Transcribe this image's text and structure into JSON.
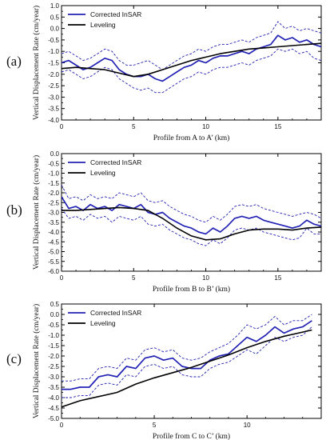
{
  "chart_data": [
    {
      "type": "line",
      "panel_label": "(a)",
      "xlabel": "Profile from A to A’ (km)",
      "ylabel": "Vertical Displacement Rate (cm/year)",
      "xlim": [
        0,
        18
      ],
      "ylim": [
        -4.0,
        1.0
      ],
      "xticks": [
        0,
        5,
        10,
        15
      ],
      "yticks": [
        1.0,
        0.5,
        0.0,
        -0.5,
        -1.0,
        -1.5,
        -2.0,
        -2.5,
        -3.0,
        -3.5,
        -4.0
      ],
      "ytick_labels": [
        "1.0",
        "0.5",
        "0.0",
        "-0.5",
        "-1.0",
        "-1.5",
        "-2.0",
        "-2.5",
        "-3.0",
        "-3.5",
        "-4.0"
      ],
      "legend_position": "top-left",
      "colors": {
        "insar": "#2222b4",
        "leveling": "#000000"
      },
      "series": [
        {
          "name": "Corrected InSAR",
          "style": "solid",
          "x": [
            0,
            0.5,
            1,
            1.5,
            2,
            2.5,
            3,
            3.5,
            4,
            4.5,
            5,
            5.5,
            6,
            6.5,
            7,
            7.5,
            8,
            8.5,
            9,
            9.5,
            10,
            10.5,
            11,
            11.5,
            12,
            12.5,
            13,
            13.5,
            14,
            14.5,
            15,
            15.5,
            16,
            16.5,
            17,
            17.5,
            18
          ],
          "y": [
            -1.5,
            -1.4,
            -1.6,
            -1.8,
            -1.7,
            -1.5,
            -1.3,
            -1.4,
            -1.8,
            -2.0,
            -2.1,
            -2.1,
            -2.0,
            -2.2,
            -2.3,
            -2.1,
            -1.9,
            -1.7,
            -1.6,
            -1.4,
            -1.5,
            -1.3,
            -1.2,
            -1.2,
            -1.1,
            -1.0,
            -1.1,
            -0.9,
            -0.8,
            -0.7,
            -0.3,
            -0.5,
            -0.4,
            -0.6,
            -0.5,
            -0.7,
            -0.8
          ]
        },
        {
          "name": "",
          "style": "dashed",
          "x": [
            0,
            0.5,
            1,
            1.5,
            2,
            2.5,
            3,
            3.5,
            4,
            4.5,
            5,
            5.5,
            6,
            6.5,
            7,
            7.5,
            8,
            8.5,
            9,
            9.5,
            10,
            10.5,
            11,
            11.5,
            12,
            12.5,
            13,
            13.5,
            14,
            14.5,
            15,
            15.5,
            16,
            16.5,
            17,
            17.5,
            18
          ],
          "y": [
            -1.1,
            -1.0,
            -1.2,
            -1.4,
            -1.3,
            -1.1,
            -0.9,
            -1.0,
            -1.4,
            -1.6,
            -1.6,
            -1.5,
            -1.4,
            -1.6,
            -1.8,
            -1.6,
            -1.4,
            -1.2,
            -1.1,
            -0.9,
            -1.0,
            -0.8,
            -0.7,
            -0.7,
            -0.6,
            -0.5,
            -0.6,
            -0.4,
            -0.3,
            -0.2,
            0.3,
            0.0,
            0.1,
            -0.1,
            0.0,
            -0.1,
            -0.2
          ]
        },
        {
          "name": "",
          "style": "dashed",
          "x": [
            0,
            0.5,
            1,
            1.5,
            2,
            2.5,
            3,
            3.5,
            4,
            4.5,
            5,
            5.5,
            6,
            6.5,
            7,
            7.5,
            8,
            8.5,
            9,
            9.5,
            10,
            10.5,
            11,
            11.5,
            12,
            12.5,
            13,
            13.5,
            14,
            14.5,
            15,
            15.5,
            16,
            16.5,
            17,
            17.5,
            18
          ],
          "y": [
            -1.9,
            -1.8,
            -2.0,
            -2.2,
            -2.1,
            -1.9,
            -1.7,
            -1.8,
            -2.2,
            -2.4,
            -2.6,
            -2.7,
            -2.6,
            -2.8,
            -2.8,
            -2.6,
            -2.4,
            -2.2,
            -2.1,
            -1.9,
            -2.0,
            -1.8,
            -1.7,
            -1.7,
            -1.6,
            -1.5,
            -1.6,
            -1.4,
            -1.3,
            -1.2,
            -0.9,
            -1.0,
            -0.9,
            -1.1,
            -1.0,
            -1.3,
            -1.4
          ]
        },
        {
          "name": "Leveling",
          "style": "solid",
          "x": [
            0,
            1,
            2,
            3,
            4,
            5,
            6,
            7,
            8,
            9,
            10,
            11,
            12,
            13,
            14,
            15,
            16,
            17,
            18
          ],
          "y": [
            -1.75,
            -1.7,
            -1.75,
            -1.8,
            -1.95,
            -2.1,
            -2.0,
            -1.8,
            -1.6,
            -1.4,
            -1.25,
            -1.1,
            -1.0,
            -0.9,
            -0.85,
            -0.8,
            -0.75,
            -0.7,
            -0.65
          ]
        }
      ]
    },
    {
      "type": "line",
      "panel_label": "(b)",
      "xlabel": "Profile from B to B’ (km)",
      "ylabel": "Vertical Displacement Rate (cm/year)",
      "xlim": [
        0,
        18
      ],
      "ylim": [
        -6.0,
        0.0
      ],
      "xticks": [
        0,
        5,
        10,
        15
      ],
      "yticks": [
        0.0,
        -0.5,
        -1.0,
        -1.5,
        -2.0,
        -2.5,
        -3.0,
        -3.5,
        -4.0,
        -4.5,
        -5.0,
        -5.5,
        -6.0
      ],
      "ytick_labels": [
        "0.0",
        "-0.5",
        "-1.0",
        "-1.5",
        "-2.0",
        "-2.5",
        "-3.0",
        "-3.5",
        "-4.0",
        "-4.5",
        "-5.0",
        "-5.5",
        "-6.0"
      ],
      "legend_position": "top-left",
      "colors": {
        "insar": "#2222b4",
        "leveling": "#000000"
      },
      "series": [
        {
          "name": "Corrected InSAR",
          "style": "solid",
          "x": [
            0,
            0.5,
            1,
            1.5,
            2,
            2.5,
            3,
            3.5,
            4,
            4.5,
            5,
            5.5,
            6,
            6.5,
            7,
            7.5,
            8,
            8.5,
            9,
            9.5,
            10,
            10.5,
            11,
            11.5,
            12,
            12.5,
            13,
            13.5,
            14,
            14.5,
            15,
            15.5,
            16,
            16.5,
            17,
            17.5,
            18
          ],
          "y": [
            -2.2,
            -2.8,
            -2.7,
            -2.9,
            -2.6,
            -2.8,
            -2.7,
            -2.9,
            -2.6,
            -2.7,
            -2.8,
            -2.6,
            -3.0,
            -3.1,
            -3.0,
            -3.3,
            -3.5,
            -3.7,
            -3.8,
            -4.0,
            -4.1,
            -3.8,
            -4.0,
            -3.7,
            -3.3,
            -3.2,
            -3.3,
            -3.2,
            -3.4,
            -3.5,
            -3.6,
            -3.7,
            -3.8,
            -3.7,
            -3.4,
            -3.6,
            -3.7
          ]
        },
        {
          "name": "",
          "style": "dashed",
          "x": [
            0,
            0.5,
            1,
            1.5,
            2,
            2.5,
            3,
            3.5,
            4,
            4.5,
            5,
            5.5,
            6,
            6.5,
            7,
            7.5,
            8,
            8.5,
            9,
            9.5,
            10,
            10.5,
            11,
            11.5,
            12,
            12.5,
            13,
            13.5,
            14,
            14.5,
            15,
            15.5,
            16,
            16.5,
            17,
            17.5,
            18
          ],
          "y": [
            -1.6,
            -2.3,
            -2.2,
            -2.4,
            -2.1,
            -2.3,
            -2.2,
            -2.3,
            -2.0,
            -2.1,
            -2.2,
            -2.0,
            -2.4,
            -2.5,
            -2.4,
            -2.7,
            -2.9,
            -3.1,
            -3.2,
            -3.4,
            -3.5,
            -3.2,
            -3.4,
            -3.1,
            -2.7,
            -2.6,
            -2.7,
            -2.6,
            -2.8,
            -2.9,
            -3.0,
            -3.1,
            -3.2,
            -3.1,
            -3.0,
            -3.1,
            -3.3
          ]
        },
        {
          "name": "",
          "style": "dashed",
          "x": [
            0,
            0.5,
            1,
            1.5,
            2,
            2.5,
            3,
            3.5,
            4,
            4.5,
            5,
            5.5,
            6,
            6.5,
            7,
            7.5,
            8,
            8.5,
            9,
            9.5,
            10,
            10.5,
            11,
            11.5,
            12,
            12.5,
            13,
            13.5,
            14,
            14.5,
            15,
            15.5,
            16,
            16.5,
            17,
            17.5,
            18
          ],
          "y": [
            -2.8,
            -3.3,
            -3.2,
            -3.4,
            -3.1,
            -3.3,
            -3.2,
            -3.5,
            -3.2,
            -3.3,
            -3.4,
            -3.2,
            -3.6,
            -3.7,
            -3.6,
            -3.9,
            -4.1,
            -4.3,
            -4.4,
            -4.6,
            -4.7,
            -4.4,
            -4.6,
            -4.3,
            -3.9,
            -3.8,
            -3.9,
            -3.8,
            -4.0,
            -4.1,
            -4.2,
            -4.3,
            -4.4,
            -4.3,
            -3.8,
            -4.1,
            -4.1
          ]
        },
        {
          "name": "Leveling",
          "style": "solid",
          "x": [
            0,
            1,
            2,
            3,
            4,
            5,
            6,
            7,
            8,
            9,
            10,
            11,
            12,
            13,
            14,
            15,
            16,
            17,
            18
          ],
          "y": [
            -2.9,
            -2.9,
            -2.85,
            -2.8,
            -2.75,
            -2.8,
            -2.9,
            -3.3,
            -3.8,
            -4.2,
            -4.4,
            -4.35,
            -4.1,
            -3.9,
            -3.85,
            -3.85,
            -3.9,
            -3.8,
            -3.75
          ]
        }
      ]
    },
    {
      "type": "line",
      "panel_label": "(c)",
      "xlabel": "Profile from C to C’ (km)",
      "ylabel": "Vertical Displacement Rate (cm/year)",
      "xlim": [
        0,
        14
      ],
      "ylim": [
        -5.0,
        0.5
      ],
      "xticks": [
        0,
        5,
        10
      ],
      "yticks": [
        0.5,
        0.0,
        -0.5,
        -1.0,
        -1.5,
        -2.0,
        -2.5,
        -3.0,
        -3.5,
        -4.0,
        -4.5,
        -5.0
      ],
      "ytick_labels": [
        "0.5",
        "0.0",
        "-0.5",
        "-1.0",
        "-1.5",
        "-2.0",
        "-2.5",
        "-3.0",
        "-3.5",
        "-4.0",
        "-4.5",
        "-5.0"
      ],
      "legend_position": "top-left",
      "colors": {
        "insar": "#2222b4",
        "leveling": "#000000"
      },
      "series": [
        {
          "name": "Corrected InSAR",
          "style": "solid",
          "x": [
            0,
            0.5,
            1,
            1.5,
            2,
            2.5,
            3,
            3.5,
            4,
            4.5,
            5,
            5.5,
            6,
            6.5,
            7,
            7.5,
            8,
            8.5,
            9,
            9.5,
            10,
            10.5,
            11,
            11.5,
            12,
            12.5,
            13,
            13.5
          ],
          "y": [
            -3.6,
            -3.6,
            -3.5,
            -3.5,
            -3.0,
            -2.9,
            -3.0,
            -2.5,
            -2.6,
            -2.1,
            -2.0,
            -2.2,
            -2.1,
            -2.5,
            -2.6,
            -2.6,
            -2.2,
            -2.0,
            -1.9,
            -1.5,
            -1.1,
            -1.3,
            -1.0,
            -0.6,
            -0.9,
            -0.7,
            -0.6,
            -0.3
          ]
        },
        {
          "name": "",
          "style": "dashed",
          "x": [
            0,
            0.5,
            1,
            1.5,
            2,
            2.5,
            3,
            3.5,
            4,
            4.5,
            5,
            5.5,
            6,
            6.5,
            7,
            7.5,
            8,
            8.5,
            9,
            9.5,
            10,
            10.5,
            11,
            11.5,
            12,
            12.5,
            13,
            13.5
          ],
          "y": [
            -3.2,
            -3.2,
            -3.1,
            -3.1,
            -2.6,
            -2.5,
            -2.6,
            -2.1,
            -2.2,
            -1.7,
            -1.6,
            -1.8,
            -1.7,
            -2.1,
            -2.2,
            -2.1,
            -1.8,
            -1.6,
            -1.4,
            -1.0,
            -0.5,
            -0.7,
            -0.5,
            -0.1,
            -0.5,
            -0.3,
            -0.3,
            0.0
          ]
        },
        {
          "name": "",
          "style": "dashed",
          "x": [
            0,
            0.5,
            1,
            1.5,
            2,
            2.5,
            3,
            3.5,
            4,
            4.5,
            5,
            5.5,
            6,
            6.5,
            7,
            7.5,
            8,
            8.5,
            9,
            9.5,
            10,
            10.5,
            11,
            11.5,
            12,
            12.5,
            13,
            13.5
          ],
          "y": [
            -4.0,
            -4.0,
            -3.9,
            -3.9,
            -3.4,
            -3.3,
            -3.4,
            -2.9,
            -3.0,
            -2.5,
            -2.4,
            -2.6,
            -2.5,
            -2.9,
            -3.0,
            -3.0,
            -2.6,
            -2.4,
            -2.3,
            -2.0,
            -1.7,
            -1.9,
            -1.5,
            -1.1,
            -1.3,
            -1.1,
            -1.0,
            -0.6
          ]
        },
        {
          "name": "Leveling",
          "style": "solid",
          "x": [
            0,
            1,
            2,
            3,
            4,
            5,
            6,
            7,
            8,
            9,
            10,
            11,
            12,
            13,
            13.5
          ],
          "y": [
            -4.45,
            -4.15,
            -3.95,
            -3.75,
            -3.35,
            -3.05,
            -2.8,
            -2.55,
            -2.25,
            -1.95,
            -1.6,
            -1.3,
            -1.05,
            -0.85,
            -0.75
          ]
        }
      ]
    }
  ]
}
